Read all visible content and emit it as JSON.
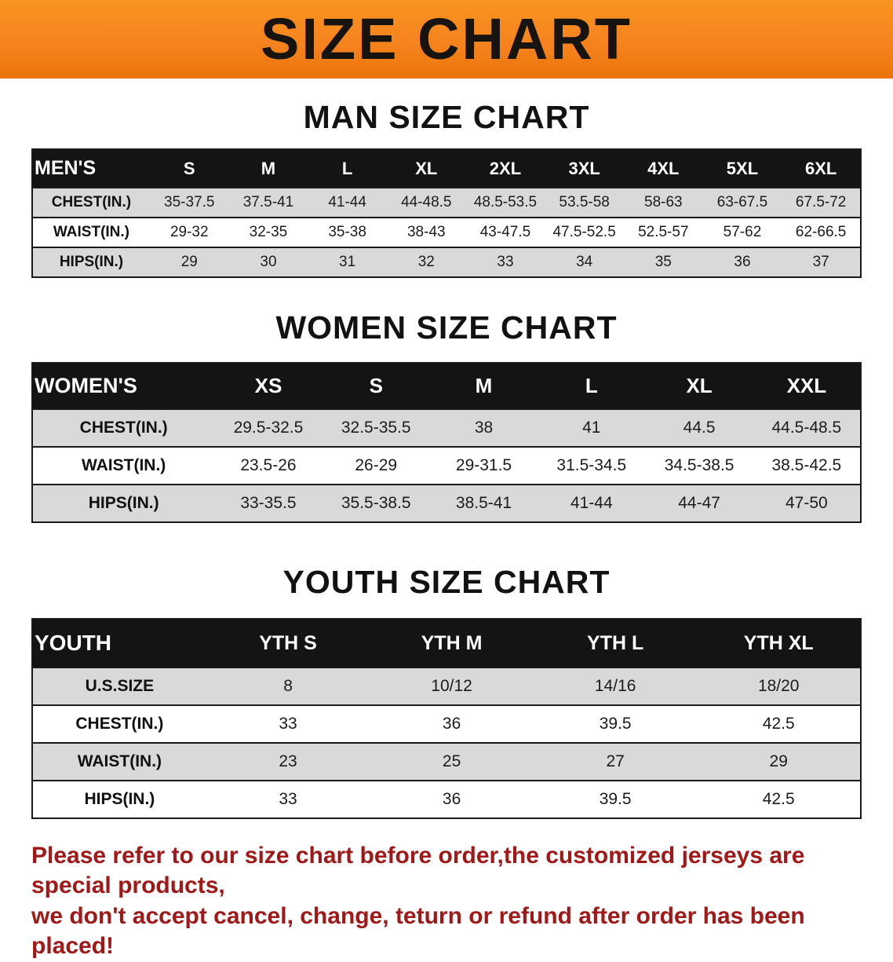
{
  "banner": {
    "title": "SIZE CHART"
  },
  "sections": {
    "men": {
      "heading": "MAN SIZE CHART",
      "table": {
        "header": [
          "MEN'S",
          "S",
          "M",
          "L",
          "XL",
          "2XL",
          "3XL",
          "4XL",
          "5XL",
          "6XL"
        ],
        "rows": [
          {
            "label": "CHEST(IN.)",
            "values": [
              "35-37.5",
              "37.5-41",
              "41-44",
              "44-48.5",
              "48.5-53.5",
              "53.5-58",
              "58-63",
              "63-67.5",
              "67.5-72"
            ]
          },
          {
            "label": "WAIST(IN.)",
            "values": [
              "29-32",
              "32-35",
              "35-38",
              "38-43",
              "43-47.5",
              "47.5-52.5",
              "52.5-57",
              "57-62",
              "62-66.5"
            ]
          },
          {
            "label": "HIPS(IN.)",
            "values": [
              "29",
              "30",
              "31",
              "32",
              "33",
              "34",
              "35",
              "36",
              "37"
            ]
          }
        ]
      }
    },
    "women": {
      "heading": "WOMEN SIZE CHART",
      "table": {
        "header": [
          "WOMEN'S",
          "XS",
          "S",
          "M",
          "L",
          "XL",
          "XXL"
        ],
        "rows": [
          {
            "label": "CHEST(IN.)",
            "values": [
              "29.5-32.5",
              "32.5-35.5",
              "38",
              "41",
              "44.5",
              "44.5-48.5"
            ]
          },
          {
            "label": "WAIST(IN.)",
            "values": [
              "23.5-26",
              "26-29",
              "29-31.5",
              "31.5-34.5",
              "34.5-38.5",
              "38.5-42.5"
            ]
          },
          {
            "label": "HIPS(IN.)",
            "values": [
              "33-35.5",
              "35.5-38.5",
              "38.5-41",
              "41-44",
              "44-47",
              "47-50"
            ]
          }
        ]
      }
    },
    "youth": {
      "heading": "YOUTH SIZE CHART",
      "table": {
        "header": [
          "YOUTH",
          "YTH S",
          "YTH M",
          "YTH L",
          "YTH XL"
        ],
        "rows": [
          {
            "label": "U.S.SIZE",
            "values": [
              "8",
              "10/12",
              "14/16",
              "18/20"
            ]
          },
          {
            "label": "CHEST(IN.)",
            "values": [
              "33",
              "36",
              "39.5",
              "42.5"
            ]
          },
          {
            "label": "WAIST(IN.)",
            "values": [
              "23",
              "25",
              "27",
              "29"
            ]
          },
          {
            "label": "HIPS(IN.)",
            "values": [
              "33",
              "36",
              "39.5",
              "42.5"
            ]
          }
        ]
      }
    }
  },
  "footer": {
    "line1": "Please refer to our size chart before order,the customized jerseys are special products,",
    "line2": "we don't accept cancel, change, teturn or refund after order has been placed!"
  },
  "colors": {
    "banner_orange": "#F5831F",
    "header_black": "#141414",
    "stripe_gray": "#D9D9D9",
    "notice_red": "#A01818"
  }
}
